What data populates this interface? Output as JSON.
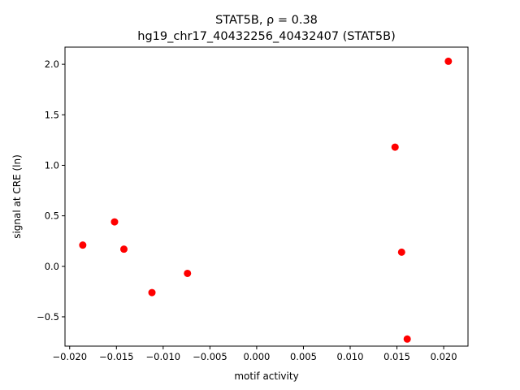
{
  "chart_data": {
    "type": "scatter",
    "title_line1": "STAT5B, ρ = 0.38",
    "title_line2": "hg19_chr17_40432256_40432407 (STAT5B)",
    "xlabel": "motif activity",
    "ylabel": "signal at CRE (ln)",
    "xlim": [
      -0.0205,
      0.0226
    ],
    "ylim": [
      -0.79,
      2.17
    ],
    "xticks": [
      -0.02,
      -0.015,
      -0.01,
      -0.005,
      0.0,
      0.005,
      0.01,
      0.015,
      0.02
    ],
    "xtick_labels": [
      "−0.020",
      "−0.015",
      "−0.010",
      "−0.005",
      "0.000",
      "0.005",
      "0.010",
      "0.015",
      "0.020"
    ],
    "yticks": [
      -0.5,
      0.0,
      0.5,
      1.0,
      1.5,
      2.0
    ],
    "ytick_labels": [
      "−0.5",
      "0.0",
      "0.5",
      "1.0",
      "1.5",
      "2.0"
    ],
    "grid": false,
    "marker_color": "#ff0000",
    "points": [
      {
        "x": -0.0186,
        "y": 0.21
      },
      {
        "x": -0.0152,
        "y": 0.44
      },
      {
        "x": -0.0142,
        "y": 0.17
      },
      {
        "x": -0.0112,
        "y": -0.26
      },
      {
        "x": -0.0074,
        "y": -0.07
      },
      {
        "x": 0.0148,
        "y": 1.18
      },
      {
        "x": 0.0155,
        "y": 0.14
      },
      {
        "x": 0.0161,
        "y": -0.72
      },
      {
        "x": 0.0205,
        "y": 2.03
      }
    ]
  }
}
